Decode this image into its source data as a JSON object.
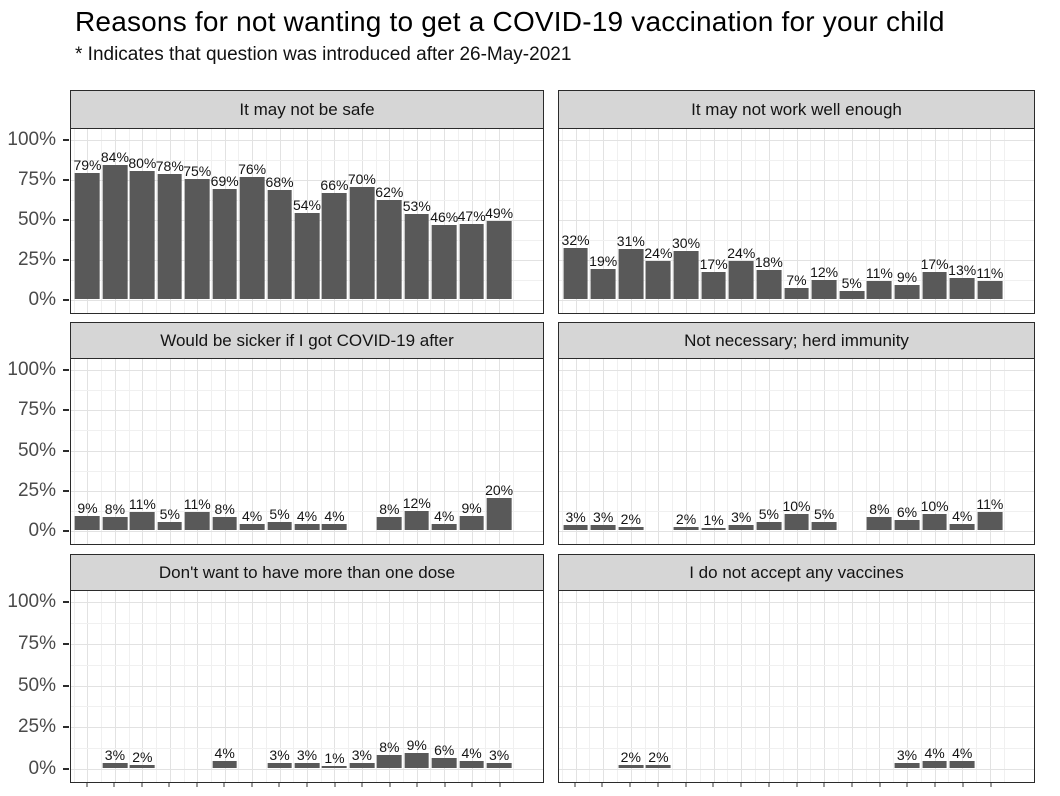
{
  "title": "Reasons for not wanting to get a COVID-19 vaccination for your child",
  "subtitle": "* Indicates that question was introduced after 26-May-2021",
  "colors": {
    "bar_fill": "#595959",
    "strip_background": "#d6d6d6",
    "panel_border": "#2b2b2b",
    "grid_major": "#e2e2e2",
    "grid_minor": "#f0f0f0",
    "axis_text": "#4a4a4a",
    "label_text": "#141414"
  },
  "chart_data": {
    "type": "bar",
    "title": "Reasons for not wanting to get a COVID-19 vaccination for your child",
    "subtitle": "* Indicates that question was introduced after 26-May-2021",
    "ylabel": "",
    "xlabel": "",
    "ylim": [
      0,
      100
    ],
    "grid": "on",
    "y_tick_labels": [
      "100%",
      "75%",
      "50%",
      "25%",
      "0%"
    ],
    "y_tick_values": [
      100,
      75,
      50,
      25,
      0
    ],
    "x_slot_count": 16,
    "value_suffix": "%",
    "facets": [
      {
        "title": "It may not be safe",
        "values": [
          79,
          84,
          80,
          78,
          75,
          69,
          76,
          68,
          54,
          66,
          70,
          62,
          53,
          46,
          47,
          49
        ]
      },
      {
        "title": "It may not work well enough",
        "values": [
          32,
          19,
          31,
          24,
          30,
          17,
          24,
          18,
          7,
          12,
          5,
          11,
          9,
          17,
          13,
          11
        ]
      },
      {
        "title": "Would be sicker if I got COVID-19 after",
        "values": [
          9,
          8,
          11,
          5,
          11,
          8,
          4,
          5,
          4,
          4,
          null,
          8,
          12,
          4,
          9,
          20
        ]
      },
      {
        "title": "Not necessary; herd immunity",
        "values": [
          3,
          3,
          2,
          null,
          2,
          1,
          3,
          5,
          10,
          5,
          null,
          8,
          6,
          10,
          4,
          11
        ]
      },
      {
        "title": "Don't want to have more than one dose",
        "values": [
          null,
          3,
          2,
          null,
          null,
          4,
          null,
          3,
          3,
          1,
          3,
          8,
          9,
          6,
          4,
          3
        ]
      },
      {
        "title": "I do not accept any vaccines",
        "values": [
          null,
          null,
          2,
          2,
          null,
          null,
          null,
          null,
          null,
          null,
          null,
          null,
          3,
          4,
          4,
          null
        ]
      }
    ]
  }
}
